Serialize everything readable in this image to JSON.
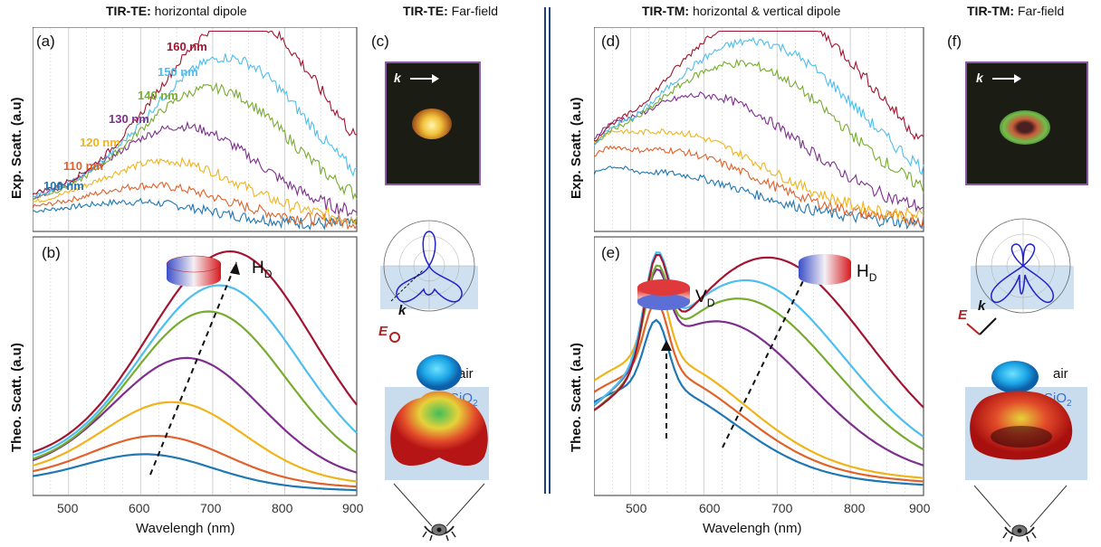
{
  "headers": {
    "te_dipole": {
      "bold": "TIR-TE:",
      "rest": " horizontal dipole"
    },
    "te_far": {
      "bold": "TIR-TE:",
      "rest": " Far-field"
    },
    "tm_dipole": {
      "bold": "TIR-TM:",
      "rest": " horizontal & vertical dipole"
    },
    "tm_far": {
      "bold": "TIR-TM:",
      "rest": " Far-field"
    }
  },
  "panels": {
    "a": "(a)",
    "b": "(b)",
    "c": "(c)",
    "d": "(d)",
    "e": "(e)",
    "f": "(f)"
  },
  "axes": {
    "exp_ylabel": "Exp. Scatt. (a.u)",
    "theo_ylabel": "Theo. Scatt. (a.u)",
    "xlabel": "Wavelengh (nm)",
    "left_ticks": [
      "500",
      "600",
      "700",
      "800",
      "900"
    ],
    "right_ticks": [
      "500",
      "600",
      "700",
      "800",
      "900"
    ]
  },
  "series_labels": [
    "100 nm",
    "110 nm",
    "120 nm",
    "130 nm",
    "140 nm",
    "150 nm",
    "160 nm"
  ],
  "colors": {
    "100": "#1f77b4",
    "110": "#e0622a",
    "120": "#f0b41a",
    "130": "#7e2f8e",
    "140": "#77ac30",
    "150": "#4dbeee",
    "160": "#a2142f",
    "frame": "#8b5aa6",
    "sep": "#1f3f7a"
  },
  "annotations": {
    "hd_te": "H",
    "hd_te_sub": "D",
    "vd_tm": "V",
    "vd_tm_sub": "D",
    "hd_tm": "H",
    "hd_tm_sub": "D",
    "k_label": "k",
    "e_label": "E",
    "air": "air",
    "sio2": "SiO",
    "sio2_sub": "2"
  },
  "chart_data": [
    {
      "type": "line",
      "panel": "a",
      "title": "",
      "xlabel": "",
      "ylabel": "Exp. Scatt. (a.u)",
      "xlim": [
        450,
        900
      ],
      "series": [
        {
          "name": "100 nm",
          "peak_x": 600,
          "peak": 0.08
        },
        {
          "name": "110 nm",
          "peak_x": 620,
          "peak": 0.15
        },
        {
          "name": "120 nm",
          "peak_x": 640,
          "peak": 0.26
        },
        {
          "name": "130 nm",
          "peak_x": 660,
          "peak": 0.42
        },
        {
          "name": "140 nm",
          "peak_x": 700,
          "peak": 0.6
        },
        {
          "name": "150 nm",
          "peak_x": 720,
          "peak": 0.74
        },
        {
          "name": "160 nm",
          "peak_x": 740,
          "peak": 0.93
        }
      ]
    },
    {
      "type": "line",
      "panel": "b",
      "title": "",
      "xlabel": "Wavelengh (nm)",
      "ylabel": "Theo. Scatt. (a.u)",
      "xlim": [
        450,
        900
      ],
      "series": [
        {
          "name": "100 nm",
          "peak_x": 610,
          "peak": 0.12
        },
        {
          "name": "110 nm",
          "peak_x": 625,
          "peak": 0.18
        },
        {
          "name": "120 nm",
          "peak_x": 645,
          "peak": 0.3
        },
        {
          "name": "130 nm",
          "peak_x": 665,
          "peak": 0.46
        },
        {
          "name": "140 nm",
          "peak_x": 695,
          "peak": 0.63
        },
        {
          "name": "150 nm",
          "peak_x": 710,
          "peak": 0.72
        },
        {
          "name": "160 nm",
          "peak_x": 725,
          "peak": 0.84
        }
      ]
    },
    {
      "type": "line",
      "panel": "d",
      "title": "",
      "xlabel": "",
      "ylabel": "Exp. Scatt. (a.u)",
      "xlim": [
        450,
        900
      ],
      "series": [
        {
          "name": "100 nm",
          "peak_x": 540,
          "peak": 0.2
        },
        {
          "name": "110 nm",
          "peak_x": 545,
          "peak": 0.3
        },
        {
          "name": "120 nm",
          "peak_x": 550,
          "peak": 0.38
        },
        {
          "name": "130 nm",
          "peak_x": 600,
          "peak": 0.55
        },
        {
          "name": "140 nm",
          "peak_x": 650,
          "peak": 0.7
        },
        {
          "name": "150 nm",
          "peak_x": 670,
          "peak": 0.8
        },
        {
          "name": "160 nm",
          "peak_x": 690,
          "peak": 0.95
        }
      ]
    },
    {
      "type": "line",
      "panel": "e",
      "title": "",
      "xlabel": "Wavelengh (nm)",
      "ylabel": "Theo. Scatt. (a.u)",
      "xlim": [
        450,
        900
      ],
      "series": [
        {
          "name": "100 nm",
          "peak_x": 530,
          "peak": 0.34
        },
        {
          "name": "110 nm",
          "peak_x": 535,
          "peak": 0.38
        },
        {
          "name": "120 nm",
          "peak_x": 537,
          "peak": 0.42
        },
        {
          "name": "130 nm",
          "peak_x": 620,
          "peak": 0.56
        },
        {
          "name": "140 nm",
          "peak_x": 650,
          "peak": 0.64
        },
        {
          "name": "150 nm",
          "peak_x": 660,
          "peak": 0.7
        },
        {
          "name": "160 nm",
          "peak_x": 690,
          "peak": 0.78
        }
      ]
    }
  ]
}
